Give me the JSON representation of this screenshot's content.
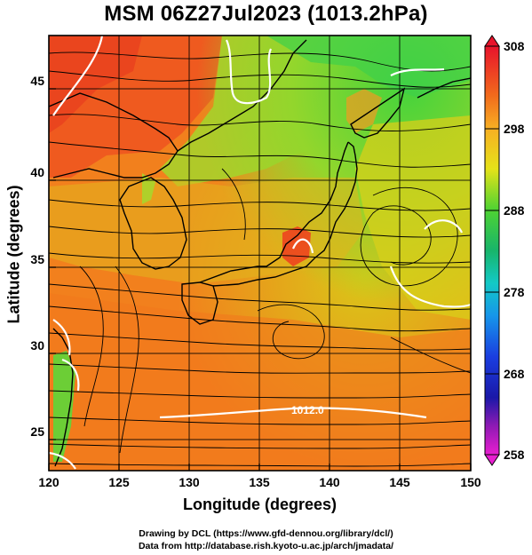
{
  "title": "MSM 06Z27Jul2023 (1013.2hPa)",
  "x_axis": {
    "label": "Longitude (degrees)",
    "range": [
      120,
      150
    ],
    "ticks": [
      "120",
      "125",
      "130",
      "135",
      "140",
      "145",
      "150"
    ]
  },
  "y_axis": {
    "label": "Latitude  (degrees)",
    "range": [
      22.5,
      48
    ],
    "ticks": [
      "25",
      "30",
      "35",
      "40",
      "45"
    ]
  },
  "colorbar": {
    "range": [
      258,
      308
    ],
    "ticks": [
      "308",
      "298",
      "288",
      "278",
      "268",
      "258"
    ]
  },
  "contour_label": "1012.0",
  "credits": {
    "line1": "Drawing by DCL (https://www.gfd-dennou.org/library/dcl/)",
    "line2": "Data from http://database.rish.kyoto-u.ac.jp/arch/jmadata/"
  },
  "colors": {
    "warm": "#f57a1c",
    "hot": "#ef3b1f",
    "mild": "#e0c21a",
    "cool": "#55d63c",
    "streamline": "#000000",
    "isobar": "#ffffff"
  }
}
